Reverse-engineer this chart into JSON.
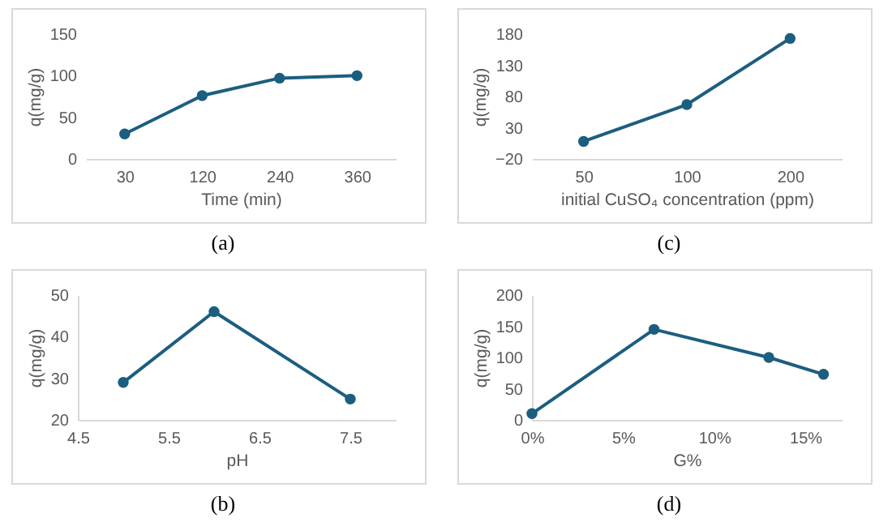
{
  "chart_data": [
    {
      "type": "line",
      "categories": [
        "30",
        "120",
        "240",
        "360"
      ],
      "series": [
        {
          "color": "#1b5e80",
          "values": [
            30,
            76,
            97,
            100
          ]
        }
      ],
      "xlabel": "Time (min)",
      "ylabel": "q(mg/g)",
      "ylim": [
        0,
        150
      ],
      "yticks": [
        0,
        50,
        100,
        150
      ],
      "marker": "circle",
      "line_style": "solid",
      "annotations": [
        "(a)"
      ]
    },
    {
      "type": "line",
      "categories": [
        "50",
        "100",
        "200"
      ],
      "series": [
        {
          "color": "#1b5e80",
          "values": [
            8,
            67,
            173
          ]
        }
      ],
      "xlabel": "initial CuSO₄ concentration (ppm)",
      "ylabel": "q(mg/g)",
      "ylim": [
        -20,
        180
      ],
      "yticks": [
        -20,
        30,
        80,
        130,
        180
      ],
      "marker": "circle",
      "line_style": "solid",
      "annotations": [
        "(c)"
      ]
    },
    {
      "type": "line",
      "x": [
        5,
        6,
        7.5
      ],
      "series": [
        {
          "color": "#1b5e80",
          "values": [
            29,
            46,
            25
          ]
        }
      ],
      "xlabel": "pH",
      "ylabel": "q(mg/g)",
      "xlim": [
        4.5,
        8
      ],
      "xticks": [
        4.5,
        5.5,
        6.5,
        7.5
      ],
      "ylim": [
        20,
        50
      ],
      "yticks": [
        20,
        30,
        40,
        50
      ],
      "marker": "circle",
      "line_style": "solid",
      "annotations": [
        "(b)"
      ]
    },
    {
      "type": "line",
      "x": [
        0,
        6.7,
        13,
        16
      ],
      "series": [
        {
          "color": "#1b5e80",
          "values": [
            10,
            145,
            100,
            73
          ]
        }
      ],
      "xlabel": "G%",
      "ylabel": "q(mg/g)",
      "xlim": [
        0,
        17
      ],
      "xticks": [
        {
          "value": 0,
          "label": "0%"
        },
        {
          "value": 5,
          "label": "5%"
        },
        {
          "value": 10,
          "label": "10%"
        },
        {
          "value": 15,
          "label": "15%"
        }
      ],
      "ylim": [
        0,
        200
      ],
      "yticks": [
        0,
        50,
        100,
        150,
        200
      ],
      "marker": "circle",
      "line_style": "solid",
      "annotations": [
        "(d)"
      ]
    }
  ]
}
